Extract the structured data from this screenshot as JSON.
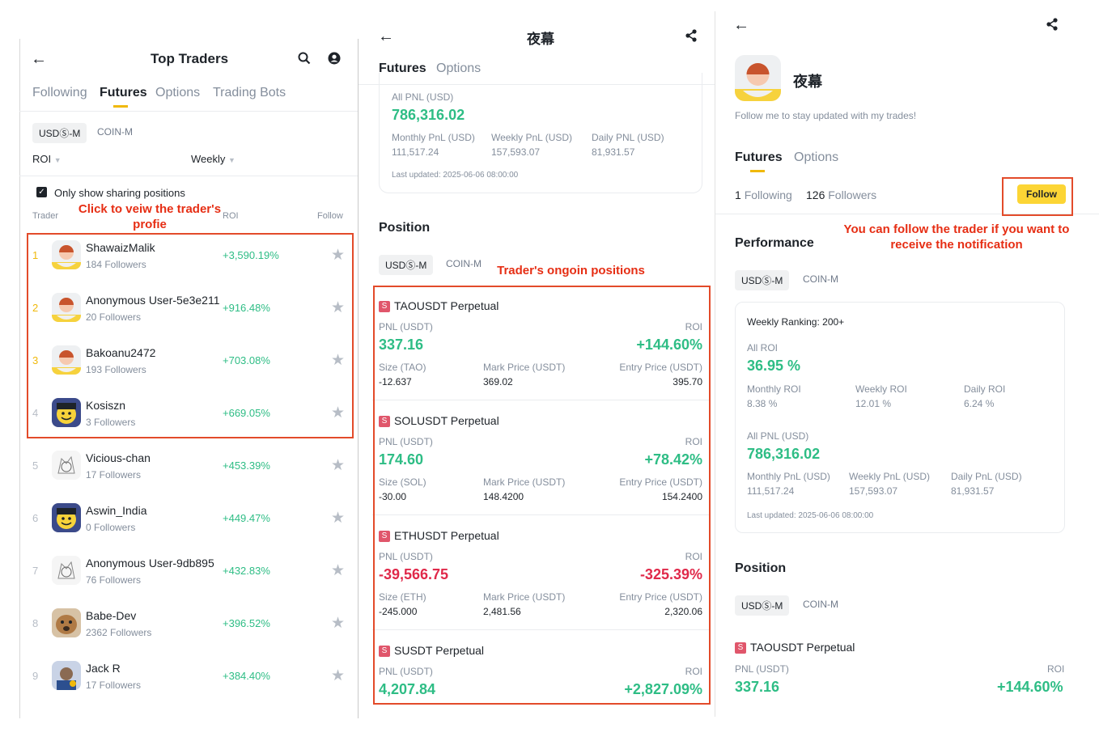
{
  "left": {
    "title": "Top Traders",
    "tabs": [
      "Following",
      "Futures",
      "Options",
      "Trading Bots"
    ],
    "market_chips": [
      "USDⓈ-M",
      "COIN-M"
    ],
    "sort_roi": "ROI",
    "period": "Weekly",
    "only_sharing": "Only show sharing positions",
    "col_trader": "Trader",
    "col_roi": "ROI",
    "col_follow": "Follow",
    "annotation": "Click to veiw the trader's profie",
    "traders": [
      {
        "rank": "1",
        "name": "ShawaizMalik",
        "followers": "184 Followers",
        "roi": "+3,590.19%"
      },
      {
        "rank": "2",
        "name": "Anonymous User-5e3e211",
        "followers": "20 Followers",
        "roi": "+916.48%"
      },
      {
        "rank": "3",
        "name": "Bakoanu2472",
        "followers": "193 Followers",
        "roi": "+703.08%"
      },
      {
        "rank": "4",
        "name": "Kosiszn",
        "followers": "3 Followers",
        "roi": "+669.05%"
      },
      {
        "rank": "5",
        "name": "Vicious-chan",
        "followers": "17 Followers",
        "roi": "+453.39%"
      },
      {
        "rank": "6",
        "name": "Aswin_India",
        "followers": "0 Followers",
        "roi": "+449.47%"
      },
      {
        "rank": "7",
        "name": "Anonymous User-9db895",
        "followers": "76 Followers",
        "roi": "+432.83%"
      },
      {
        "rank": "8",
        "name": "Babe-Dev",
        "followers": "2362 Followers",
        "roi": "+396.52%"
      },
      {
        "rank": "9",
        "name": "Jack R",
        "followers": "17 Followers",
        "roi": "+384.40%"
      }
    ]
  },
  "middle": {
    "title": "夜幕",
    "tabs": [
      "Futures",
      "Options"
    ],
    "all_pnl_label": "All PNL (USD)",
    "all_pnl_value": "786,316.02",
    "monthly_label": "Monthly PnL (USD)",
    "monthly_value": "111,517.24",
    "weekly_label": "Weekly PnL (USD)",
    "weekly_value": "157,593.07",
    "daily_label": "Daily PNL (USD)",
    "daily_value": "81,931.57",
    "last_updated": "Last updated: 2025-06-06 08:00:00",
    "position_title": "Position",
    "market_chips": [
      "USDⓈ-M",
      "COIN-M"
    ],
    "annotation": "Trader's ongoin positions",
    "positions": [
      {
        "badge": "S",
        "symbol": "TAOUSDT Perpetual",
        "pnl_label": "PNL (USDT)",
        "roi_label": "ROI",
        "pnl": "337.16",
        "roi": "+144.60%",
        "size_label": "Size (TAO)",
        "size": "-12.637",
        "mark_label": "Mark Price (USDT)",
        "mark": "369.02",
        "entry_label": "Entry Price (USDT)",
        "entry": "395.70"
      },
      {
        "badge": "S",
        "symbol": "SOLUSDT Perpetual",
        "pnl_label": "PNL (USDT)",
        "roi_label": "ROI",
        "pnl": "174.60",
        "roi": "+78.42%",
        "size_label": "Size (SOL)",
        "size": "-30.00",
        "mark_label": "Mark Price (USDT)",
        "mark": "148.4200",
        "entry_label": "Entry Price (USDT)",
        "entry": "154.2400"
      },
      {
        "badge": "S",
        "symbol": "ETHUSDT Perpetual",
        "pnl_label": "PNL (USDT)",
        "roi_label": "ROI",
        "pnl": "-39,566.75",
        "roi": "-325.39%",
        "size_label": "Size (ETH)",
        "size": "-245.000",
        "mark_label": "Mark Price (USDT)",
        "mark": "2,481.56",
        "entry_label": "Entry Price (USDT)",
        "entry": "2,320.06"
      },
      {
        "badge": "S",
        "symbol": "SUSDT Perpetual",
        "pnl_label": "PNL (USDT)",
        "roi_label": "ROI",
        "pnl": "4,207.84",
        "roi": "+2,827.09%"
      }
    ]
  },
  "right": {
    "name": "夜幕",
    "bio": "Follow me to stay updated with my trades!",
    "tabs": [
      "Futures",
      "Options"
    ],
    "following_count": "1",
    "following_label": "Following",
    "followers_count": "126",
    "followers_label": "Followers",
    "follow_button": "Follow",
    "annotation": "You can follow the trader if you want to receive the notification",
    "performance_title": "Performance",
    "market_chips": [
      "USDⓈ-M",
      "COIN-M"
    ],
    "weekly_ranking": "Weekly Ranking: 200+",
    "all_roi_label": "All ROI",
    "all_roi_value": "36.95 %",
    "monthly_roi_label": "Monthly ROI",
    "monthly_roi_value": "8.38 %",
    "weekly_roi_label": "Weekly ROI",
    "weekly_roi_value": "12.01 %",
    "daily_roi_label": "Daily ROI",
    "daily_roi_value": "6.24 %",
    "all_pnl_label": "All PNL (USD)",
    "all_pnl_value": "786,316.02",
    "monthly_pnl_label": "Monthly PnL (USD)",
    "monthly_pnl_value": "111,517.24",
    "weekly_pnl_label": "Weekly PnL (USD)",
    "weekly_pnl_value": "157,593.07",
    "daily_pnl_label": "Daily PnL (USD)",
    "daily_pnl_value": "81,931.57",
    "last_updated": "Last updated: 2025-06-06 08:00:00",
    "position_title": "Position",
    "position_chips": [
      "USDⓈ-M",
      "COIN-M"
    ],
    "position": {
      "badge": "S",
      "symbol": "TAOUSDT Perpetual",
      "pnl_label": "PNL (USDT)",
      "roi_label": "ROI",
      "pnl": "337.16",
      "roi": "+144.60%"
    }
  },
  "colors": {
    "accent": "#f0b90b",
    "up": "#2ebd85",
    "down": "#e0294a",
    "annotation": "#e62e14"
  }
}
